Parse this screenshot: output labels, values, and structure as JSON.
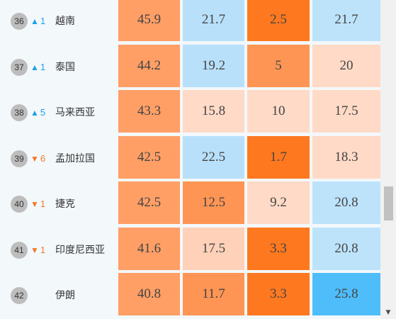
{
  "rows": [
    {
      "rank": "36",
      "dir": "up",
      "arrow": "▲",
      "change": "1",
      "country": "越南",
      "values": [
        "45.9",
        "21.7",
        "2.5",
        "21.7"
      ],
      "heat": [
        "h3",
        "b1",
        "h5",
        "b2"
      ]
    },
    {
      "rank": "37",
      "dir": "up",
      "arrow": "▲",
      "change": "1",
      "country": "泰国",
      "values": [
        "44.2",
        "19.2",
        "5",
        "20"
      ],
      "heat": [
        "h3",
        "b1",
        "h4",
        "h1"
      ]
    },
    {
      "rank": "38",
      "dir": "up",
      "arrow": "▲",
      "change": "5",
      "country": "马来西亚",
      "values": [
        "43.3",
        "15.8",
        "10",
        "17.5"
      ],
      "heat": [
        "h3",
        "h1",
        "h1",
        "h1"
      ]
    },
    {
      "rank": "39",
      "dir": "down",
      "arrow": "▼",
      "change": "6",
      "country": "孟加拉国",
      "values": [
        "42.5",
        "22.5",
        "1.7",
        "18.3"
      ],
      "heat": [
        "h3",
        "b1",
        "h5",
        "h1"
      ]
    },
    {
      "rank": "40",
      "dir": "down",
      "arrow": "▼",
      "change": "1",
      "country": "捷克",
      "values": [
        "42.5",
        "12.5",
        "9.2",
        "20.8"
      ],
      "heat": [
        "h3",
        "h4",
        "h1",
        "b2"
      ]
    },
    {
      "rank": "41",
      "dir": "down",
      "arrow": "▼",
      "change": "1",
      "country": "印度尼西亚",
      "values": [
        "41.6",
        "17.5",
        "3.3",
        "20.8"
      ],
      "heat": [
        "h3",
        "h2",
        "h5",
        "b2"
      ]
    },
    {
      "rank": "42",
      "dir": "none",
      "arrow": "",
      "change": "",
      "country": "伊朗",
      "values": [
        "40.8",
        "11.7",
        "3.3",
        "25.8"
      ],
      "heat": [
        "h3",
        "h4",
        "h5",
        "b3"
      ]
    }
  ],
  "scrollbar": {
    "down_arrow": "▼"
  },
  "colors": {
    "deep_orange": "#fe781f",
    "orange": "#ff9554",
    "light_orange": "#ffd1b9",
    "light_blue": "#b8e0fb",
    "blue": "#4fbdfa",
    "up_arrow": "#1ea0e6",
    "down_arrow": "#f07a28"
  }
}
